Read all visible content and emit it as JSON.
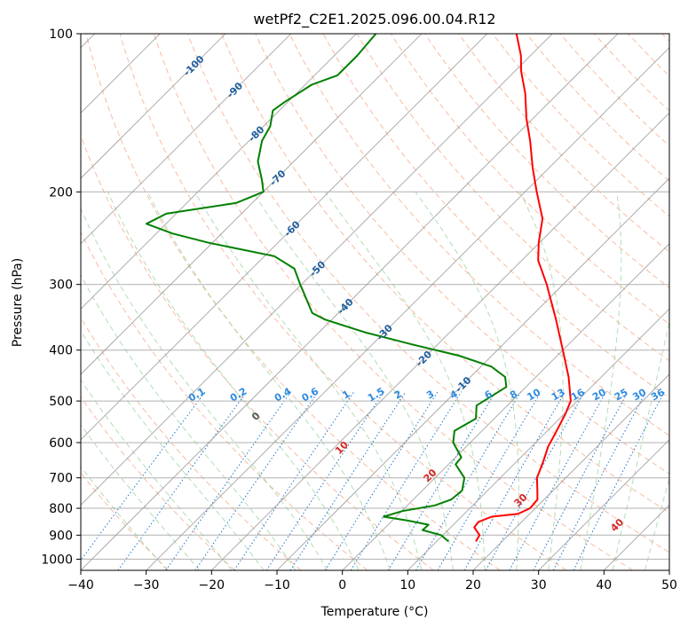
{
  "colors": {
    "temperature": "#ff0000",
    "dewpoint": "#008000",
    "isobar_grid": "#b0b0b0",
    "isotherm_grid": "#9a9a9a",
    "dry_adiabat": "#f4a582",
    "moist_adiabat": "#9fd49f",
    "mixing_ratio": "#1f78d1",
    "mixing_ratio_label": "#2e8be0",
    "isotherm_label": "#1f5f9f",
    "lcl_label_low": "#555555",
    "lcl_label_warm": "#d62728",
    "special_isotherm": "#e0c8a8"
  },
  "chart_data": {
    "type": "line",
    "title": "wetPf2_C2E1.2025.096.00.04.R12",
    "xlabel": "Temperature (°C)",
    "ylabel": "Pressure (hPa)",
    "xlim": [
      -40,
      50
    ],
    "ylim": [
      1050,
      100
    ],
    "y_scale": "log",
    "grid": true,
    "x_ticks": [
      -40,
      -30,
      -20,
      -10,
      0,
      10,
      20,
      30,
      40,
      50
    ],
    "x_tick_labels": [
      "−40",
      "−30",
      "−20",
      "−10",
      "0",
      "10",
      "20",
      "30",
      "40",
      "50"
    ],
    "y_ticks": [
      100,
      200,
      300,
      400,
      500,
      600,
      700,
      800,
      900,
      1000
    ],
    "y_tick_labels": [
      "100",
      "200",
      "300",
      "400",
      "500",
      "600",
      "700",
      "800",
      "900",
      "1000"
    ],
    "isotherm_labels": [
      {
        "text": "-100",
        "temp": -100
      },
      {
        "text": "-90",
        "temp": -90
      },
      {
        "text": "-80",
        "temp": -80
      },
      {
        "text": "-70",
        "temp": -70
      },
      {
        "text": "-60",
        "temp": -60
      },
      {
        "text": "-50",
        "temp": -50
      },
      {
        "text": "-40",
        "temp": -40
      },
      {
        "text": "-30",
        "temp": -30
      },
      {
        "text": "-20",
        "temp": -20
      },
      {
        "text": "-10",
        "temp": -10
      }
    ],
    "mixing_ratio_labels": [
      "0.1",
      "0.2",
      "0.4",
      "0.6",
      "1",
      "1.5",
      "2",
      "3",
      "4",
      "6",
      "8",
      "10",
      "13",
      "16",
      "20",
      "25",
      "30",
      "36"
    ],
    "adiabat_labels": [
      {
        "text": "0",
        "temp": 0
      },
      {
        "text": "10",
        "temp": 10
      },
      {
        "text": "20",
        "temp": 20
      },
      {
        "text": "30",
        "temp": 30
      },
      {
        "text": "40",
        "temp": 40
      }
    ],
    "series": [
      {
        "key": "temperature",
        "points": [
          [
            925,
            16.0
          ],
          [
            900,
            15.6
          ],
          [
            870,
            13.6
          ],
          [
            850,
            13.4
          ],
          [
            830,
            14.6
          ],
          [
            820,
            18.2
          ],
          [
            800,
            19.2
          ],
          [
            770,
            19.0
          ],
          [
            740,
            17.6
          ],
          [
            700,
            15.6
          ],
          [
            650,
            14.0
          ],
          [
            610,
            12.5
          ],
          [
            580,
            11.7
          ],
          [
            530,
            10.2
          ],
          [
            500,
            9.0
          ],
          [
            450,
            5.0
          ],
          [
            400,
            0.0
          ],
          [
            350,
            -5.7
          ],
          [
            300,
            -12.5
          ],
          [
            270,
            -17.5
          ],
          [
            250,
            -20.1
          ],
          [
            225,
            -23.2
          ],
          [
            200,
            -28.2
          ],
          [
            180,
            -32.5
          ],
          [
            160,
            -37.0
          ],
          [
            145,
            -41.0
          ],
          [
            130,
            -45.0
          ],
          [
            118,
            -49.0
          ],
          [
            110,
            -51.5
          ],
          [
            100,
            -55.5
          ]
        ]
      },
      {
        "key": "dewpoint",
        "points": [
          [
            925,
            11.8
          ],
          [
            900,
            9.7
          ],
          [
            880,
            6.1
          ],
          [
            860,
            6.2
          ],
          [
            845,
            2.6
          ],
          [
            830,
            -1.9
          ],
          [
            810,
            0.1
          ],
          [
            790,
            4.2
          ],
          [
            770,
            5.8
          ],
          [
            740,
            6.1
          ],
          [
            700,
            4.5
          ],
          [
            660,
            1.1
          ],
          [
            640,
            0.9
          ],
          [
            600,
            -2.6
          ],
          [
            570,
            -4.2
          ],
          [
            540,
            -2.8
          ],
          [
            510,
            -4.7
          ],
          [
            470,
            -3.0
          ],
          [
            450,
            -4.7
          ],
          [
            430,
            -8.4
          ],
          [
            410,
            -15.0
          ],
          [
            390,
            -24.0
          ],
          [
            370,
            -33.0
          ],
          [
            350,
            -41.0
          ],
          [
            340,
            -44.0
          ],
          [
            320,
            -47.0
          ],
          [
            300,
            -50.2
          ],
          [
            280,
            -53.5
          ],
          [
            265,
            -58.5
          ],
          [
            250,
            -70.5
          ],
          [
            240,
            -77.5
          ],
          [
            230,
            -83.0
          ],
          [
            220,
            -81.5
          ],
          [
            210,
            -72.5
          ],
          [
            200,
            -70.0
          ],
          [
            190,
            -72.0
          ],
          [
            175,
            -75.5
          ],
          [
            160,
            -78.0
          ],
          [
            150,
            -79.0
          ],
          [
            140,
            -81.0
          ],
          [
            135,
            -80.5
          ],
          [
            125,
            -79.0
          ],
          [
            120,
            -76.5
          ],
          [
            110,
            -76.5
          ],
          [
            100,
            -77.0
          ]
        ]
      }
    ]
  }
}
